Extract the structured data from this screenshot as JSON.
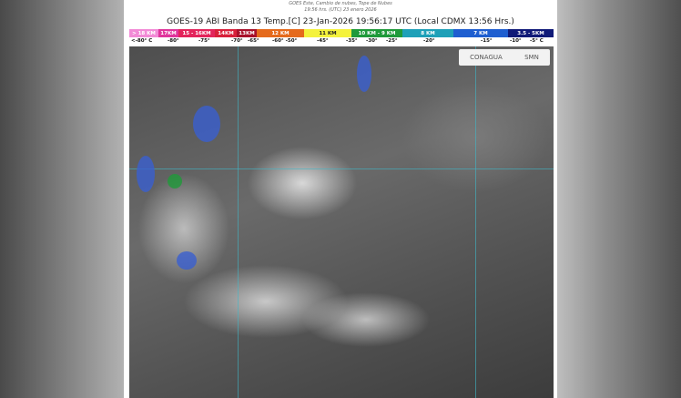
{
  "header": {
    "subtitle1": "GOES Este, Cambio de nubes, Tope de Nubes",
    "subtitle2": "19:56 hrs. (UTC) 23 enero 2026",
    "title": "GOES-19 ABI Banda 13 Temp.[C] 23-Jan-2026 19:56:17 UTC (Local CDMX  13:56 Hrs.)"
  },
  "legend": {
    "segments": [
      {
        "label": "> 18 KM",
        "color": "#f28ad6"
      },
      {
        "label": "17KM",
        "color": "#e0359c"
      },
      {
        "label": "15 - 16KM",
        "color": "#e3245b"
      },
      {
        "label": "14KM",
        "color": "#d8203a"
      },
      {
        "label": "13KM",
        "color": "#a8102a"
      },
      {
        "label": "12 KM",
        "color": "#e56a1c"
      },
      {
        "label": "11 KM",
        "color": "#f4f23c"
      },
      {
        "label": "10 KM -  9 KM",
        "color": "#1f9a3a"
      },
      {
        "label": "8 KM",
        "color": "#1ea0b8"
      },
      {
        "label": "7 KM",
        "color": "#1e5ed0"
      },
      {
        "label": "3.5 - 5KM",
        "color": "#101a78"
      }
    ],
    "temps": [
      "<-80° C",
      "-80°",
      "-75°",
      "-70°",
      "-65°",
      "-60°  -50°",
      "-45°",
      "-35°",
      "-30°",
      "-25°",
      "-20°",
      "-15°",
      "-10°",
      "-5°  C"
    ]
  },
  "logos": {
    "conagua": "CONAGUA",
    "smn": "SMN"
  }
}
